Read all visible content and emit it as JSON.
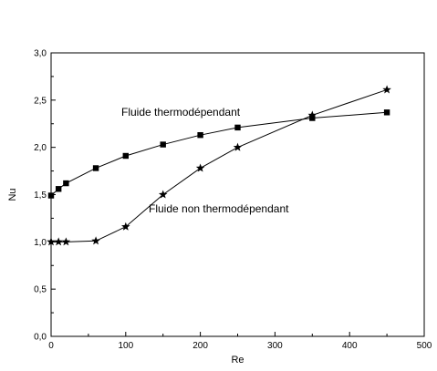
{
  "chart_data": {
    "type": "line",
    "xlabel": "Re",
    "ylabel": "Nu",
    "xlim": [
      0,
      500
    ],
    "ylim": [
      0,
      3
    ],
    "x_ticks": [
      0,
      100,
      200,
      300,
      400,
      500
    ],
    "x_tick_labels": [
      "0",
      "100",
      "200",
      "300",
      "400",
      "500"
    ],
    "y_ticks": [
      0,
      0.5,
      1.0,
      1.5,
      2.0,
      2.5,
      3.0
    ],
    "y_tick_labels": [
      "0,0",
      "0,5",
      "1,0",
      "1,5",
      "2,0",
      "2,5",
      "3,0"
    ],
    "grid": false,
    "series": [
      {
        "name": "Fluide thermodépendant",
        "marker": "square",
        "color": "#000000",
        "x": [
          0,
          10,
          20,
          60,
          100,
          150,
          200,
          250,
          350,
          450
        ],
        "y": [
          1.49,
          1.56,
          1.62,
          1.78,
          1.91,
          2.03,
          2.13,
          2.21,
          2.31,
          2.37
        ]
      },
      {
        "name": "Fluide non thermodépendant",
        "marker": "star",
        "color": "#000000",
        "x": [
          0,
          10,
          20,
          60,
          100,
          150,
          200,
          250,
          350,
          450
        ],
        "y": [
          1.0,
          1.0,
          1.0,
          1.01,
          1.16,
          1.5,
          1.78,
          2.0,
          2.34,
          2.61
        ]
      }
    ]
  }
}
